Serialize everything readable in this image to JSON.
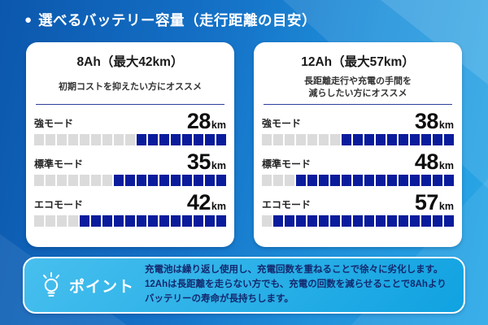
{
  "header": {
    "bullet": "●",
    "title": "選べるバッテリー容量（走行距離の目安）"
  },
  "cards": [
    {
      "id": "8ah",
      "title": "8Ah（最大42km）",
      "subtitle_lines": [
        "初期コストを抑えたい方にオススメ"
      ],
      "rows": [
        {
          "label": "強モード",
          "value": "28",
          "unit": "km",
          "gray_segments": 9,
          "blue_segments": 8
        },
        {
          "label": "標準モード",
          "value": "35",
          "unit": "km",
          "gray_segments": 7,
          "blue_segments": 10
        },
        {
          "label": "エコモード",
          "value": "42",
          "unit": "km",
          "gray_segments": 4,
          "blue_segments": 13
        }
      ]
    },
    {
      "id": "12ah",
      "title": "12Ah（最大57km）",
      "subtitle_lines": [
        "長距離走行や充電の手間を",
        "減らしたい方にオススメ"
      ],
      "rows": [
        {
          "label": "強モード",
          "value": "38",
          "unit": "km",
          "gray_segments": 7,
          "blue_segments": 10
        },
        {
          "label": "標準モード",
          "value": "48",
          "unit": "km",
          "gray_segments": 3,
          "blue_segments": 14
        },
        {
          "label": "エコモード",
          "value": "57",
          "unit": "km",
          "gray_segments": 1,
          "blue_segments": 16
        }
      ]
    }
  ],
  "point": {
    "icon": "lightbulb-icon",
    "label": "ポイント",
    "lines": [
      "充電池は繰り返し使用し、充電回数を重ねることで徐々に劣化します。",
      "12Ahは長距離を走らない方でも、充電の回数を減らせることで8Ahより",
      "バッテリーの寿命が長持ちします。"
    ]
  },
  "colors": {
    "bg_left": "#0b57ad",
    "bg_right": "#2aa9e7",
    "seg_gray": "#dbdbdb",
    "seg_blue": "#0a1c9c",
    "divider": "#2e3f9b",
    "navy_text": "#14296e",
    "point_grad_1": "#47bfee",
    "point_grad_2": "#10a2e1"
  },
  "chart_data": [
    {
      "type": "bar",
      "title": "8Ah（最大42km）",
      "subtitle": "初期コストを抑えたい方にオススメ",
      "categories": [
        "強モード",
        "標準モード",
        "エコモード"
      ],
      "values": [
        28,
        35,
        42
      ],
      "unit": "km",
      "xlim": [
        0,
        59.5
      ],
      "segments_total": 17,
      "orientation": "horizontal",
      "note": "segmented bars fill from the right; each bar has 17 segments"
    },
    {
      "type": "bar",
      "title": "12Ah（最大57km）",
      "subtitle": "長距離走行や充電の手間を減らしたい方にオススメ",
      "categories": [
        "強モード",
        "標準モード",
        "エコモード"
      ],
      "values": [
        38,
        48,
        57
      ],
      "unit": "km",
      "xlim": [
        0,
        59.5
      ],
      "segments_total": 17,
      "orientation": "horizontal",
      "note": "segmented bars fill from the right; each bar has 17 segments"
    }
  ]
}
